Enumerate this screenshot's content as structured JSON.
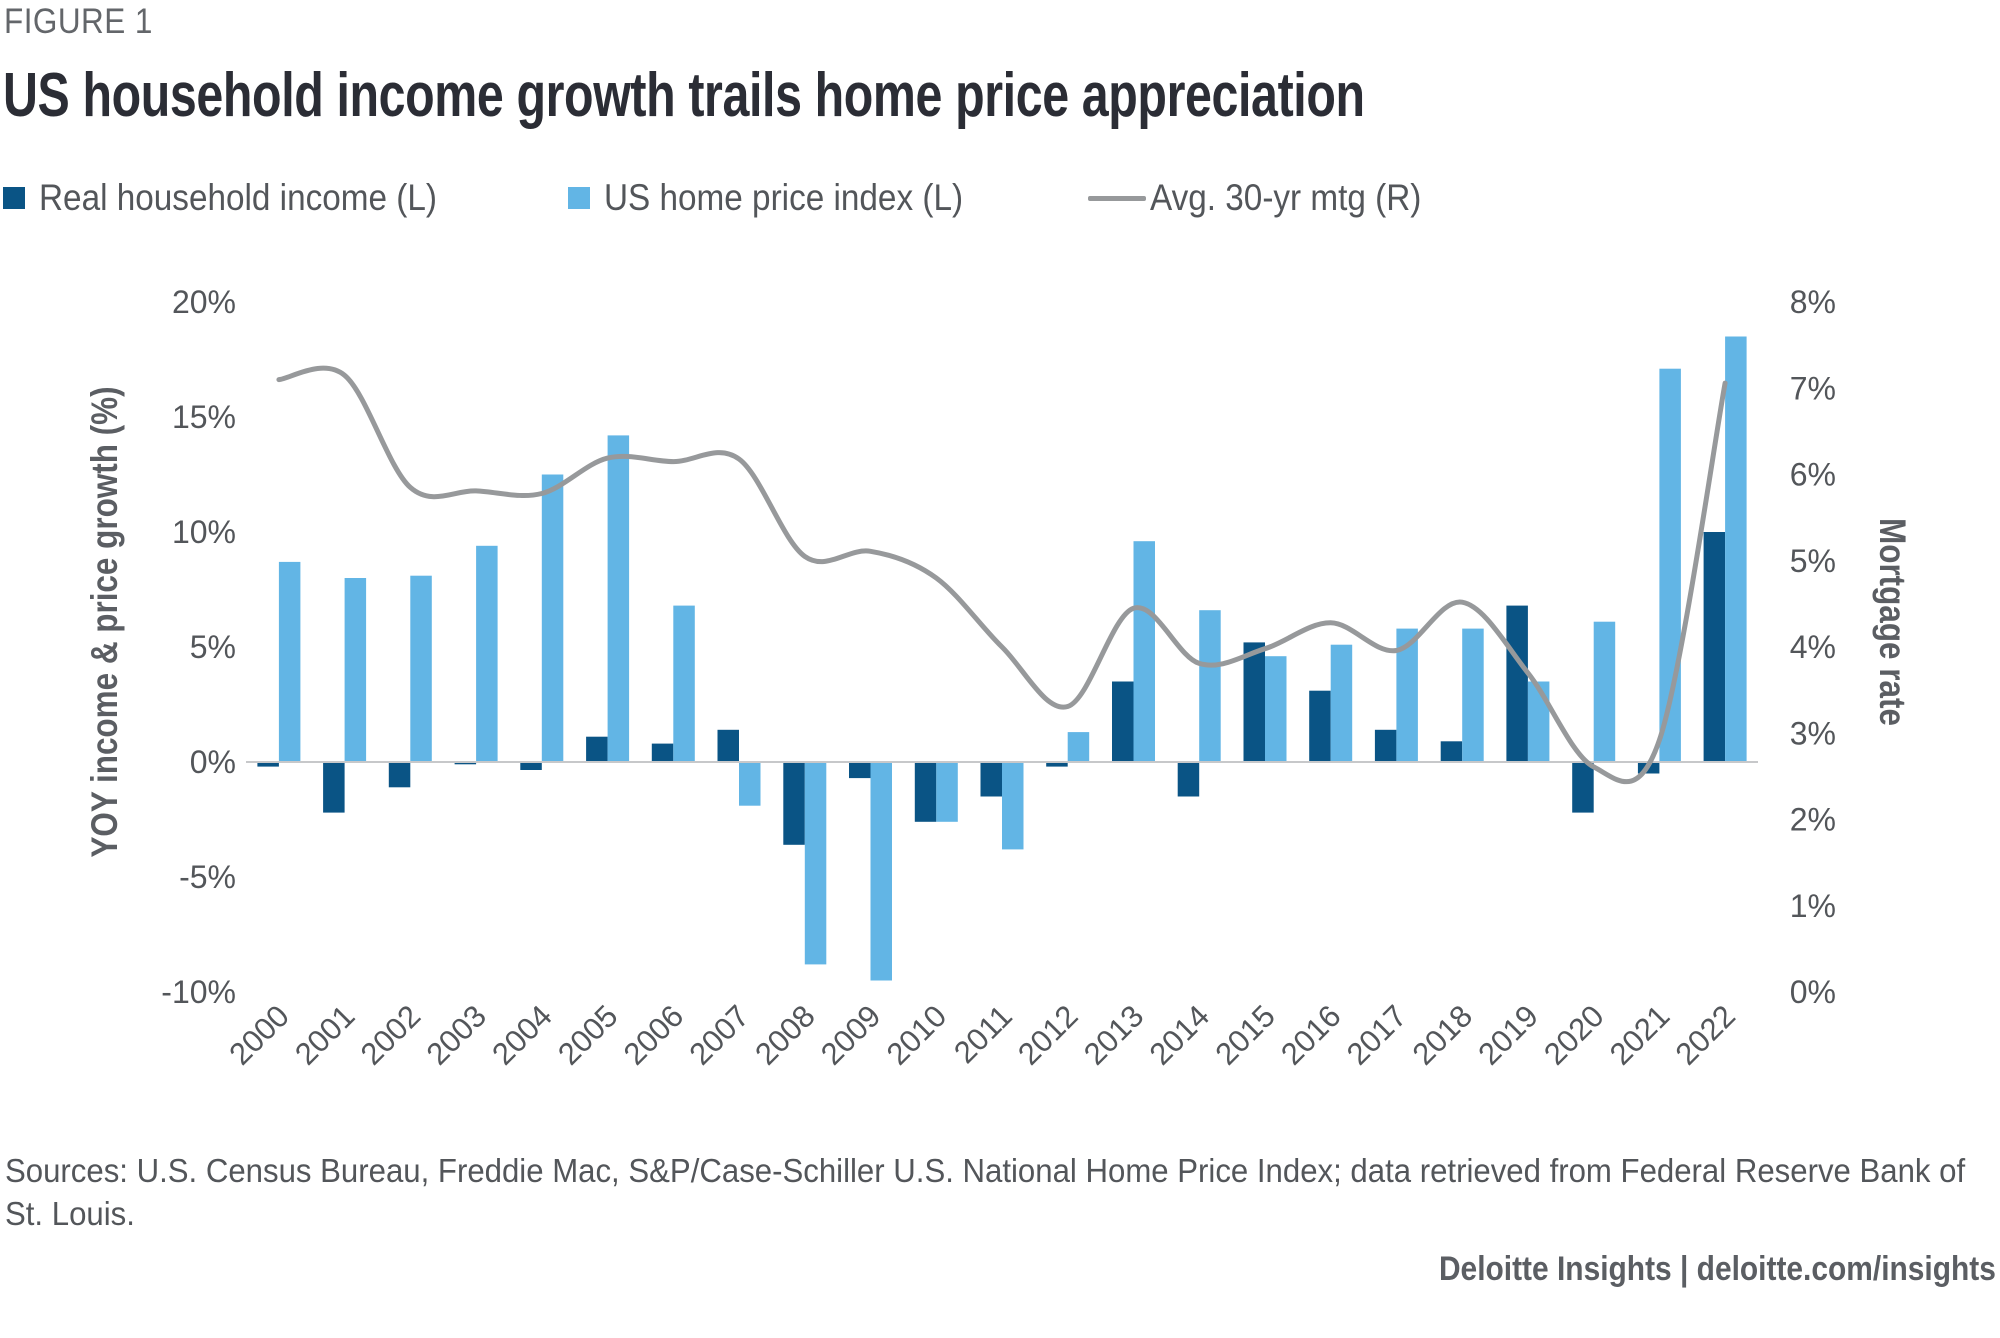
{
  "figure_label": "FIGURE 1",
  "title": "US household income growth trails home price appreciation",
  "legend": [
    {
      "label": "Real household income (L)",
      "type": "bar",
      "color": "#0a5485"
    },
    {
      "label": "US home price index (L)",
      "type": "bar",
      "color": "#62b5e5"
    },
    {
      "label": "Avg. 30-yr mtg (R)",
      "type": "line",
      "color": "#97999b"
    }
  ],
  "sources": "Sources: U.S. Census Bureau, Freddie Mac, S&P/Case-Schiller U.S. National Home Price Index; data retrieved from Federal Reserve Bank of St. Louis.",
  "brand": "Deloitte Insights | deloitte.com/insights",
  "chart_data": {
    "type": "bar",
    "title": "US household income growth trails home price appreciation",
    "categories": [
      "2000",
      "2001",
      "2002",
      "2003",
      "2004",
      "2005",
      "2006",
      "2007",
      "2008",
      "2009",
      "2010",
      "2011",
      "2012",
      "2013",
      "2014",
      "2015",
      "2016",
      "2017",
      "2018",
      "2019",
      "2020",
      "2021",
      "2022"
    ],
    "series": [
      {
        "name": "Real household income (L)",
        "type": "bar",
        "axis": "left",
        "color": "#0a5485",
        "values": [
          -0.2,
          -2.2,
          -1.1,
          -0.1,
          -0.35,
          1.1,
          0.8,
          1.4,
          -3.6,
          -0.7,
          -2.6,
          -1.5,
          -0.2,
          3.5,
          -1.5,
          5.2,
          3.1,
          1.4,
          0.9,
          6.8,
          -2.2,
          -0.5,
          10.0
        ]
      },
      {
        "name": "US home price index (L)",
        "type": "bar",
        "axis": "left",
        "color": "#62b5e5",
        "values": [
          8.7,
          8.0,
          8.1,
          9.4,
          12.5,
          14.2,
          6.8,
          -1.9,
          -8.8,
          -9.5,
          -2.6,
          -3.8,
          1.3,
          9.6,
          6.6,
          4.6,
          5.1,
          5.8,
          5.8,
          3.5,
          6.1,
          17.1,
          18.5
        ]
      },
      {
        "name": "Avg. 30-yr mtg (R)",
        "type": "line",
        "axis": "right",
        "color": "#97999b",
        "values": [
          7.1,
          7.15,
          5.85,
          5.81,
          5.78,
          6.19,
          6.15,
          6.18,
          5.05,
          5.11,
          4.8,
          4.0,
          3.31,
          4.45,
          3.81,
          3.98,
          4.28,
          3.96,
          4.52,
          3.7,
          2.61,
          2.92,
          7.06
        ]
      }
    ],
    "xlabel": "",
    "ylabel": "YOY income & price growth (%)",
    "y2label": "Mortgage rate",
    "ylim": [
      -10,
      20
    ],
    "y2lim": [
      0,
      8
    ],
    "yticks": [
      "-10%",
      "-5%",
      "0%",
      "5%",
      "10%",
      "15%",
      "20%"
    ],
    "ytick_values": [
      -10,
      -5,
      0,
      5,
      10,
      15,
      20
    ],
    "y2ticks": [
      "0%",
      "1%",
      "2%",
      "3%",
      "4%",
      "5%",
      "6%",
      "7%",
      "8%"
    ],
    "y2tick_values": [
      0,
      1,
      2,
      3,
      4,
      5,
      6,
      7,
      8
    ],
    "grid": false,
    "legend_position": "top-left"
  }
}
